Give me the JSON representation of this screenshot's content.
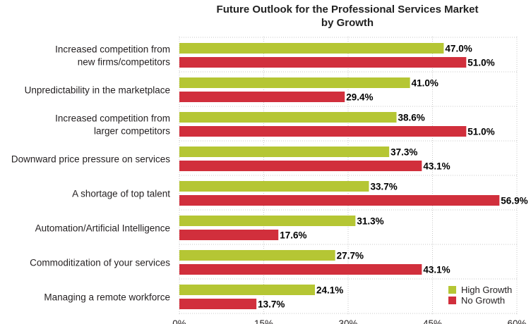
{
  "chart_data": {
    "type": "bar",
    "orientation": "horizontal",
    "title_lines": [
      "Future Outlook for the Professional Services Market",
      "by Growth"
    ],
    "categories": [
      [
        "Increased competition from",
        "new firms/competitors"
      ],
      [
        "Unpredictability in the marketplace"
      ],
      [
        "Increased competition from",
        "larger competitors"
      ],
      [
        "Downward price pressure on services"
      ],
      [
        "A shortage of top talent"
      ],
      [
        "Automation/Artificial Intelligence"
      ],
      [
        "Commoditization of your services"
      ],
      [
        "Managing a remote workforce"
      ]
    ],
    "series": [
      {
        "name": "High Growth",
        "color": "#b5c634",
        "values": [
          47.0,
          41.0,
          38.6,
          37.3,
          33.7,
          31.3,
          27.7,
          24.1
        ],
        "labels": [
          "47.0%",
          "41.0%",
          "38.6%",
          "37.3%",
          "33.7%",
          "31.3%",
          "27.7%",
          "24.1%"
        ]
      },
      {
        "name": "No Growth",
        "color": "#d12f3c",
        "values": [
          51.0,
          29.4,
          51.0,
          43.1,
          56.9,
          17.6,
          43.1,
          13.7
        ],
        "labels": [
          "51.0%",
          "29.4%",
          "51.0%",
          "43.1%",
          "56.9%",
          "17.6%",
          "43.1%",
          "13.7%"
        ]
      }
    ],
    "xlim": [
      0,
      60
    ],
    "xticks": [
      0,
      15,
      30,
      45,
      60
    ],
    "xtick_labels": [
      "0%",
      "15%",
      "30%",
      "45%",
      "60%"
    ],
    "grid": true,
    "legend_position": "bottom-right"
  }
}
